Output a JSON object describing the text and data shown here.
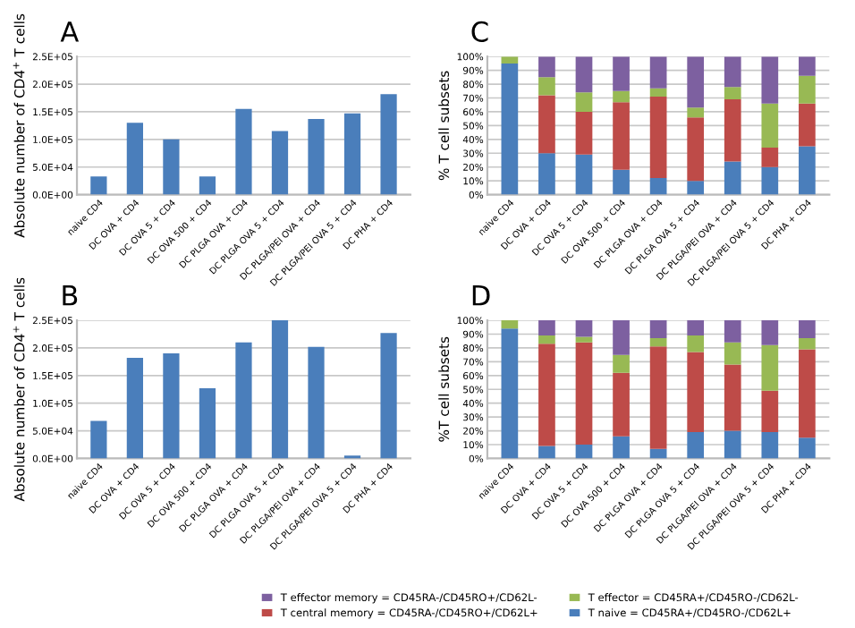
{
  "chart_data": [
    {
      "type": "bar",
      "title": "A",
      "ylabel": "Absolute number of CD4$^{+}$ T cells",
      "categories": [
        "naive CD4",
        "DC OVA + CD4",
        "DC OVA 5 + CD4",
        "DC OVA 500 + CD4",
        "DC PLGA OVA + CD4",
        "DC PLGA OVA 5 + CD4",
        "DC PLGA/PEI OVA + CD4",
        "DC PLGA/PEI OVA 5 + CD4",
        "DC PHA + CD4"
      ],
      "series": [
        {
          "color": "#4a7ebb",
          "values": [
            33000,
            130000,
            100000,
            33000,
            155000,
            115000,
            137000,
            147000,
            182000
          ]
        }
      ],
      "ylim": [
        0,
        250000
      ],
      "yticks": [
        {
          "value": 0,
          "label": "0.0E+00"
        },
        {
          "value": 50000,
          "label": "5.0E+04"
        },
        {
          "value": 100000,
          "label": "1.0E+05"
        },
        {
          "value": 150000,
          "label": "1.5E+05"
        },
        {
          "value": 200000,
          "label": "2.0E+05"
        },
        {
          "value": 250000,
          "label": "2.5E+05"
        }
      ],
      "grid": "y"
    },
    {
      "type": "bar",
      "title": "B",
      "ylabel": "Absolute number of CD4$^{+}$ T cells",
      "categories": [
        "naive CD4",
        "DC OVA + CD4",
        "DC OVA 5 + CD4",
        "DC OVA 500 + CD4",
        "DC PLGA OVA + CD4",
        "DC PLGA OVA 5 + CD4",
        "DC PLGA/PEI OVA + CD4",
        "DC PLGA/PEI OVA 5 + CD4",
        "DC PHA + CD4"
      ],
      "series": [
        {
          "color": "#4a7ebb",
          "values": [
            68000,
            182000,
            190000,
            127000,
            210000,
            250000,
            202000,
            5000,
            227000
          ]
        }
      ],
      "ylim": [
        0,
        250000
      ],
      "yticks": [
        {
          "value": 0,
          "label": "0.0E+00"
        },
        {
          "value": 50000,
          "label": "5.0E+04"
        },
        {
          "value": 100000,
          "label": "1.0E+05"
        },
        {
          "value": 150000,
          "label": "1.5E+05"
        },
        {
          "value": 200000,
          "label": "2.0E+05"
        },
        {
          "value": 250000,
          "label": "2.5E+05"
        }
      ],
      "grid": "y"
    },
    {
      "type": "bar",
      "title": "C",
      "ylabel": "% T cell subsets",
      "stacked": true,
      "categories": [
        "naive CD4",
        "DC OVA + CD4",
        "DC OVA 5 + CD4",
        "DC OVA 500 + CD4",
        "DC PLGA OVA + CD4",
        "DC PLGA OVA 5 + CD4",
        "DC PLGA/PEI OVA + CD4",
        "DC PLGA/PEI OVA 5 + CD4",
        "DC PHA + CD4"
      ],
      "series": [
        {
          "color": "#4a7ebb",
          "values": [
            95,
            30,
            29,
            18,
            12,
            10,
            24,
            20,
            35
          ]
        },
        {
          "color": "#be4b48",
          "values": [
            0,
            42,
            31,
            49,
            59,
            46,
            45,
            14,
            31
          ]
        },
        {
          "color": "#98b954",
          "values": [
            5,
            13,
            14,
            8,
            6,
            7,
            9,
            32,
            20
          ]
        },
        {
          "color": "#7d60a0",
          "values": [
            0,
            15,
            26,
            25,
            23,
            37,
            22,
            34,
            14
          ]
        }
      ],
      "ylim": [
        0,
        100
      ],
      "yticks": [
        {
          "value": 0,
          "label": "0%"
        },
        {
          "value": 10,
          "label": "10%"
        },
        {
          "value": 20,
          "label": "20%"
        },
        {
          "value": 30,
          "label": "30%"
        },
        {
          "value": 40,
          "label": "40%"
        },
        {
          "value": 50,
          "label": "50%"
        },
        {
          "value": 60,
          "label": "60%"
        },
        {
          "value": 70,
          "label": "70%"
        },
        {
          "value": 80,
          "label": "80%"
        },
        {
          "value": 90,
          "label": "90%"
        },
        {
          "value": 100,
          "label": "100%"
        }
      ],
      "grid": "y"
    },
    {
      "type": "bar",
      "title": "D",
      "ylabel": "%T cell subsets",
      "stacked": true,
      "categories": [
        "naive CD4",
        "DC OVA + CD4",
        "DC OVA 5 + CD4",
        "DC OVA 500 + CD4",
        "DC PLGA OVA + CD4",
        "DC PLGA OVA 5 + CD4",
        "DC PLGA/PEI OVA + CD4",
        "DC PLGA/PEI OVA 5 + CD4",
        "DC PHA + CD4"
      ],
      "series": [
        {
          "name": "T naive = CD45RA+/CD45RO-/CD62L+",
          "color": "#4a7ebb",
          "values": [
            94,
            9,
            10,
            16,
            7,
            19,
            20,
            19,
            15
          ]
        },
        {
          "name": "T central memory = CD45RA-/CD45RO+/CD62L+",
          "color": "#be4b48",
          "values": [
            0,
            74,
            74,
            46,
            74,
            58,
            48,
            30,
            64
          ]
        },
        {
          "name": "T effector = CD45RA+/CD45RO-/CD62L-",
          "color": "#98b954",
          "values": [
            6,
            6,
            4,
            13,
            6,
            12,
            16,
            33,
            8
          ]
        },
        {
          "name": "T effector memory = CD45RA-/CD45RO+/CD62L-",
          "color": "#7d60a0",
          "values": [
            0,
            11,
            12,
            25,
            13,
            11,
            16,
            18,
            13
          ]
        }
      ],
      "ylim": [
        0,
        100
      ],
      "yticks": [
        {
          "value": 0,
          "label": "0%"
        },
        {
          "value": 10,
          "label": "10%"
        },
        {
          "value": 20,
          "label": "20%"
        },
        {
          "value": 30,
          "label": "30%"
        },
        {
          "value": 40,
          "label": "40%"
        },
        {
          "value": 50,
          "label": "50%"
        },
        {
          "value": 60,
          "label": "60%"
        },
        {
          "value": 70,
          "label": "70%"
        },
        {
          "value": 80,
          "label": "80%"
        },
        {
          "value": 90,
          "label": "90%"
        },
        {
          "value": 100,
          "label": "100%"
        }
      ],
      "grid": "y",
      "legend": "bottom"
    }
  ]
}
